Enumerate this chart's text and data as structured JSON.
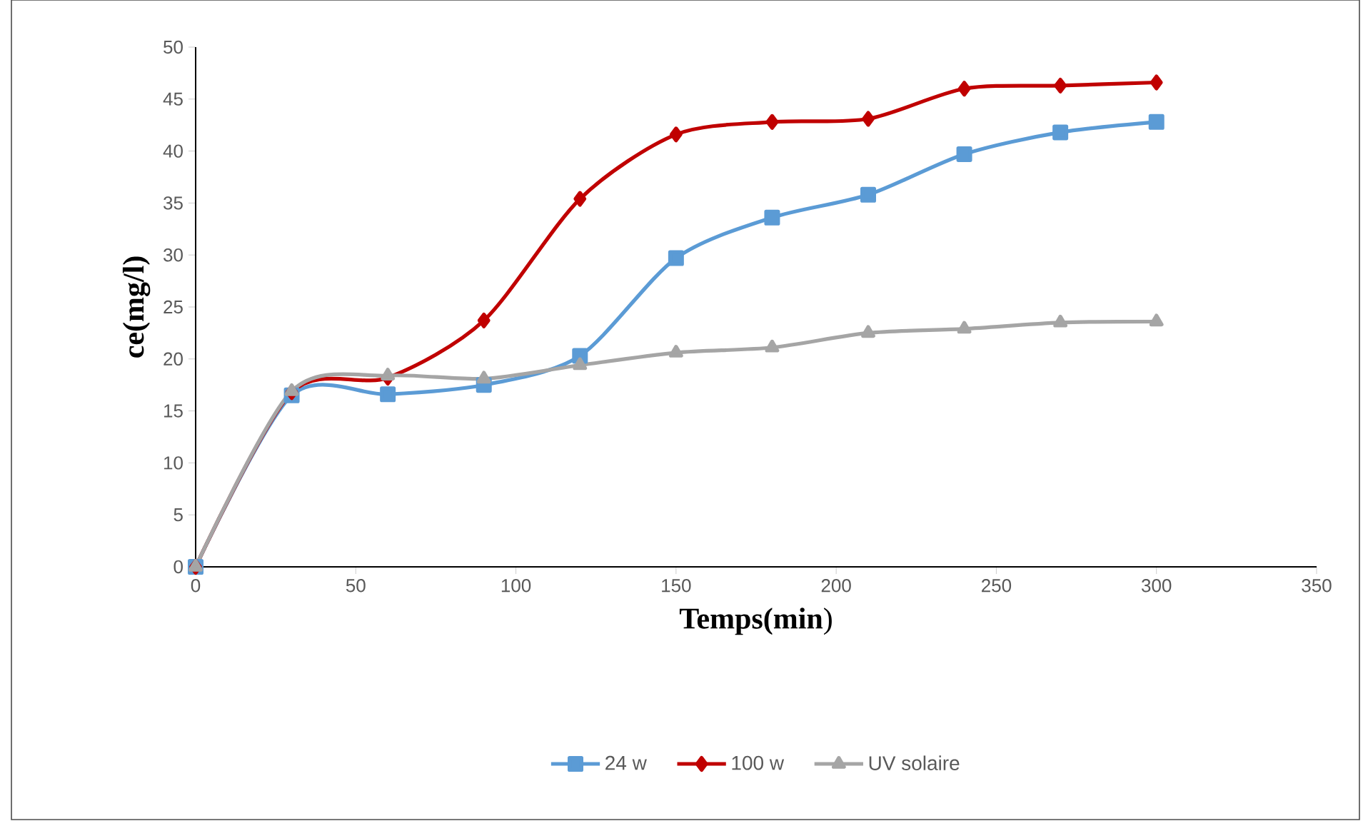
{
  "chart_data": {
    "type": "line",
    "xlabel": "**Temps(min**)",
    "ylabel": "ce(mg/l)",
    "x": [
      0,
      30,
      60,
      90,
      120,
      150,
      180,
      210,
      240,
      270,
      300
    ],
    "series": [
      {
        "name": "24 w",
        "color": "#5b9bd5",
        "marker": "square",
        "values": [
          0,
          16.5,
          16.6,
          17.5,
          20.3,
          29.7,
          33.6,
          35.8,
          39.7,
          41.8,
          42.8
        ]
      },
      {
        "name": "100 w",
        "color": "#c00000",
        "marker": "diamond",
        "values": [
          0,
          16.8,
          18.2,
          23.7,
          35.4,
          41.6,
          42.8,
          43.1,
          46.0,
          46.3,
          46.6
        ]
      },
      {
        "name": "UV solaire",
        "color": "#a5a5a5",
        "marker": "triangle",
        "values": [
          0,
          16.9,
          18.4,
          18.1,
          19.4,
          20.6,
          21.1,
          22.5,
          22.9,
          23.5,
          23.6
        ]
      }
    ],
    "xlim": [
      0,
      350
    ],
    "ylim": [
      0,
      50
    ],
    "xticks": [
      0,
      50,
      100,
      150,
      200,
      250,
      300,
      350
    ],
    "yticks": [
      0,
      5,
      10,
      15,
      20,
      25,
      30,
      35,
      40,
      45,
      50
    ],
    "grid": false,
    "legend": "bottom",
    "line_style": "solid"
  }
}
